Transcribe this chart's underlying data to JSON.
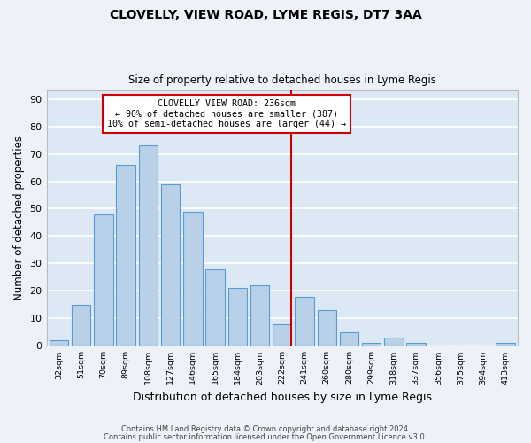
{
  "title": "CLOVELLY, VIEW ROAD, LYME REGIS, DT7 3AA",
  "subtitle": "Size of property relative to detached houses in Lyme Regis",
  "xlabel": "Distribution of detached houses by size in Lyme Regis",
  "ylabel": "Number of detached properties",
  "categories": [
    "32sqm",
    "51sqm",
    "70sqm",
    "89sqm",
    "108sqm",
    "127sqm",
    "146sqm",
    "165sqm",
    "184sqm",
    "203sqm",
    "222sqm",
    "241sqm",
    "260sqm",
    "280sqm",
    "299sqm",
    "318sqm",
    "337sqm",
    "356sqm",
    "375sqm",
    "394sqm",
    "413sqm"
  ],
  "bar_values": [
    2,
    15,
    48,
    66,
    73,
    59,
    49,
    28,
    21,
    22,
    8,
    18,
    13,
    5,
    1,
    3,
    1,
    0,
    0,
    0,
    1
  ],
  "bar_color": "#b8d0e8",
  "bar_edgecolor": "#5b9bd5",
  "vline_color": "#cc0000",
  "vline_pos": 10.42,
  "annotation_title": "CLOVELLY VIEW ROAD: 236sqm",
  "annotation_line1": "← 90% of detached houses are smaller (387)",
  "annotation_line2": "10% of semi-detached houses are larger (44) →",
  "ylim_max": 93,
  "yticks": [
    0,
    10,
    20,
    30,
    40,
    50,
    60,
    70,
    80,
    90
  ],
  "plot_bg": "#dde8f5",
  "fig_bg": "#eef2f8",
  "grid_color": "#ffffff",
  "footer1": "Contains HM Land Registry data © Crown copyright and database right 2024.",
  "footer2": "Contains public sector information licensed under the Open Government Licence v3.0."
}
